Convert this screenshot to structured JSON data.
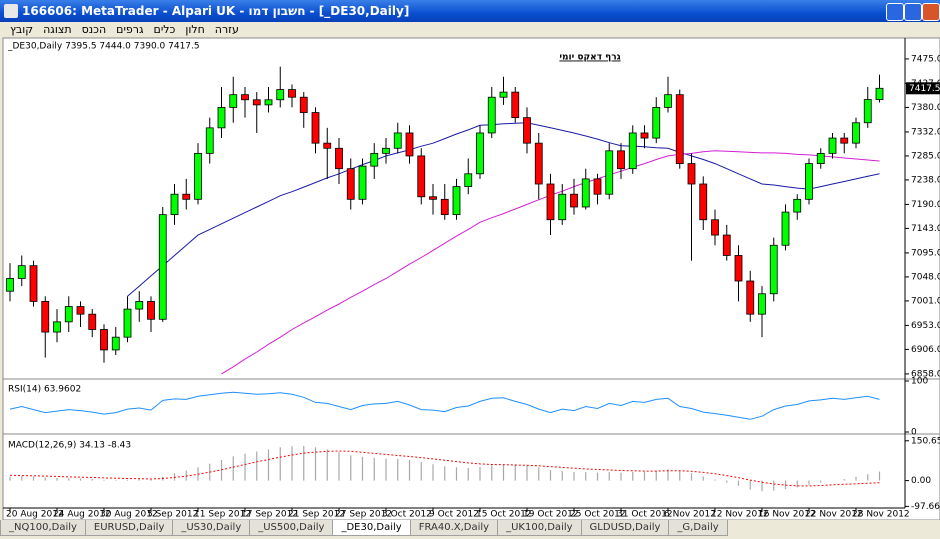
{
  "window": {
    "title": "166606: MetaTrader - Alpari UK - חשבון דמו - [_DE30,Daily]",
    "menu": [
      "קובץ",
      "תצוגה",
      "הכנס",
      "גרפים",
      "כלים",
      "חלון",
      "עזרה"
    ],
    "tabs": [
      {
        "label": "_NQ100,Daily",
        "active": false
      },
      {
        "label": "EURUSD,Daily",
        "active": false
      },
      {
        "label": "_US30,Daily",
        "active": false
      },
      {
        "label": "_US500,Daily",
        "active": false
      },
      {
        "label": "_DE30,Daily",
        "active": true
      },
      {
        "label": "FRA40.X,Daily",
        "active": false
      },
      {
        "label": "_UK100,Daily",
        "active": false
      },
      {
        "label": "GLDUSD,Daily",
        "active": false
      },
      {
        "label": "_G,Daily",
        "active": false
      }
    ]
  },
  "chart_data": [
    {
      "type": "candlestick",
      "title": "גרף דאקס יומי",
      "subtitle": "_DE30,Daily  7395.5 7444.0 7390.0 7417.5",
      "categories": [
        "20 Aug 2012",
        null,
        null,
        null,
        "24 Aug 2012",
        null,
        null,
        null,
        "30 Aug 2012",
        null,
        null,
        null,
        "5 Sep 2012",
        null,
        null,
        null,
        "11 Sep 2012",
        null,
        null,
        null,
        "17 Sep 2012",
        null,
        null,
        null,
        "21 Sep 2012",
        null,
        null,
        null,
        "27 Sep 2012",
        null,
        null,
        null,
        "3 Oct 2012",
        null,
        null,
        null,
        "9 Oct 2012",
        null,
        null,
        null,
        "15 Oct 2012",
        null,
        null,
        null,
        "19 Oct 2012",
        null,
        null,
        null,
        "25 Oct 2012",
        null,
        null,
        null,
        "31 Oct 2012",
        null,
        null,
        null,
        "6 Nov 2012",
        null,
        null,
        null,
        "12 Nov 2012",
        null,
        null,
        null,
        "16 Nov 2012",
        null,
        null,
        null,
        "22 Nov 2012",
        null,
        null,
        null,
        "28 Nov 2012",
        null,
        null
      ],
      "open": [
        7020,
        7045,
        7070,
        7000,
        6940,
        6960,
        6990,
        6975,
        6945,
        6905,
        6930,
        6985,
        7000,
        6965,
        7170,
        7210,
        7200,
        7290,
        7340,
        7380,
        7405,
        7395,
        7385,
        7395,
        7415,
        7400,
        7370,
        7310,
        7300,
        7260,
        7200,
        7265,
        7290,
        7300,
        7330,
        7285,
        7205,
        7200,
        7170,
        7225,
        7250,
        7330,
        7400,
        7410,
        7360,
        7310,
        7230,
        7160,
        7210,
        7185,
        7240,
        7210,
        7295,
        7260,
        7330,
        7320,
        7380,
        7405,
        7270,
        7230,
        7160,
        7130,
        7090,
        7040,
        6975,
        7015,
        7110,
        7175,
        7200,
        7270,
        7290,
        7320,
        7310,
        7350,
        7395.5
      ],
      "high": [
        7075,
        7090,
        7080,
        7010,
        6985,
        7010,
        7000,
        6985,
        6955,
        6950,
        7010,
        7020,
        7010,
        7185,
        7230,
        7240,
        7310,
        7360,
        7420,
        7440,
        7420,
        7410,
        7420,
        7460,
        7425,
        7410,
        7380,
        7340,
        7320,
        7280,
        7280,
        7310,
        7320,
        7350,
        7345,
        7300,
        7230,
        7230,
        7240,
        7280,
        7345,
        7420,
        7440,
        7420,
        7380,
        7330,
        7250,
        7230,
        7240,
        7260,
        7250,
        7310,
        7310,
        7345,
        7345,
        7400,
        7440,
        7415,
        7290,
        7245,
        7180,
        7150,
        7110,
        7060,
        7030,
        7125,
        7190,
        7210,
        7280,
        7300,
        7330,
        7330,
        7360,
        7420,
        7444
      ],
      "low": [
        7000,
        7030,
        6990,
        6890,
        6920,
        6940,
        6950,
        6930,
        6880,
        6895,
        6920,
        6960,
        6940,
        6960,
        7150,
        7180,
        7190,
        7270,
        7320,
        7350,
        7360,
        7330,
        7370,
        7380,
        7380,
        7340,
        7290,
        7240,
        7230,
        7180,
        7190,
        7240,
        7270,
        7290,
        7270,
        7190,
        7170,
        7160,
        7160,
        7210,
        7240,
        7320,
        7385,
        7350,
        7290,
        7200,
        7130,
        7150,
        7170,
        7180,
        7190,
        7200,
        7240,
        7250,
        7300,
        7310,
        7370,
        7260,
        7080,
        7140,
        7110,
        7080,
        7000,
        6960,
        6930,
        7000,
        7100,
        7160,
        7190,
        7260,
        7280,
        7290,
        7300,
        7340,
        7390
      ],
      "close": [
        7045,
        7070,
        7000,
        6940,
        6960,
        6990,
        6975,
        6945,
        6905,
        6930,
        6985,
        7000,
        6965,
        7170,
        7210,
        7200,
        7290,
        7340,
        7380,
        7405,
        7395,
        7385,
        7395,
        7415,
        7400,
        7370,
        7310,
        7300,
        7260,
        7200,
        7265,
        7290,
        7300,
        7330,
        7285,
        7205,
        7200,
        7170,
        7225,
        7250,
        7330,
        7400,
        7410,
        7360,
        7310,
        7230,
        7160,
        7210,
        7185,
        7240,
        7210,
        7295,
        7260,
        7330,
        7320,
        7380,
        7405,
        7270,
        7230,
        7160,
        7130,
        7090,
        7040,
        6975,
        7015,
        7110,
        7175,
        7200,
        7270,
        7290,
        7320,
        7310,
        7350,
        7395.5,
        7417.5
      ],
      "up_color": "#00ff00",
      "down_color": "#ff0000",
      "overlays": [
        {
          "color": "#1a1aa6",
          "values": [
            null,
            null,
            null,
            null,
            null,
            null,
            null,
            null,
            null,
            null,
            7010,
            7030,
            7050,
            7070,
            7090,
            7110,
            7130,
            7141,
            7152,
            7163,
            7174,
            7185,
            7196,
            7207,
            7215,
            7224,
            7233,
            7242,
            7250,
            7259,
            7268,
            7276,
            7285,
            7291,
            7297,
            7304,
            7310,
            7319,
            7328,
            7336,
            7345,
            7346,
            7348,
            7349,
            7350,
            7345,
            7340,
            7335,
            7330,
            7324,
            7318,
            7311,
            7305,
            7304,
            7303,
            7301,
            7300,
            7292,
            7285,
            7278,
            7270,
            7260,
            7250,
            7240,
            7230,
            7228,
            7225,
            7222,
            7220,
            7225,
            7230,
            7235,
            7240,
            7245,
            7250
          ]
        },
        {
          "color": "#d41fd4",
          "values": [
            null,
            null,
            null,
            null,
            null,
            null,
            null,
            null,
            null,
            null,
            null,
            null,
            null,
            null,
            null,
            null,
            null,
            null,
            6858,
            6872,
            6887,
            6901,
            6916,
            6930,
            6945,
            6958,
            6970,
            6983,
            6995,
            7008,
            7020,
            7033,
            7045,
            7059,
            7073,
            7086,
            7100,
            7114,
            7128,
            7141,
            7155,
            7164,
            7172,
            7181,
            7190,
            7199,
            7208,
            7216,
            7225,
            7233,
            7240,
            7248,
            7255,
            7263,
            7270,
            7278,
            7285,
            7288,
            7290,
            7293,
            7295,
            7294,
            7293,
            7292,
            7291,
            7291,
            7290,
            7288,
            7287,
            7285,
            7283,
            7281,
            7279,
            7277,
            7275
          ]
        }
      ],
      "ylim": [
        6850,
        7516
      ],
      "yticks": [
        {
          "value": 6858,
          "label": "6858.0"
        },
        {
          "value": 6906,
          "label": "6906.0"
        },
        {
          "value": 6953,
          "label": "6953.0"
        },
        {
          "value": 7001,
          "label": "7001.0"
        },
        {
          "value": 7048,
          "label": "7048.0"
        },
        {
          "value": 7095,
          "label": "7095.0"
        },
        {
          "value": 7143,
          "label": "7143.0"
        },
        {
          "value": 7190,
          "label": "7190.0"
        },
        {
          "value": 7238,
          "label": "7238.0"
        },
        {
          "value": 7285,
          "label": "7285.0"
        },
        {
          "value": 7332,
          "label": "7332.0"
        },
        {
          "value": 7380,
          "label": "7380.0"
        },
        {
          "value": 7427,
          "label": "7427.0"
        },
        {
          "value": 7475,
          "label": "7475.0"
        }
      ]
    },
    {
      "type": "line",
      "title": "RSI(14) 63.9602",
      "series": [
        {
          "color": "#1e90ff",
          "values": [
            45,
            50,
            44,
            38,
            41,
            44,
            42,
            39,
            35,
            38,
            45,
            47,
            43,
            62,
            65,
            64,
            70,
            73,
            76,
            78,
            76,
            74,
            75,
            77,
            74,
            68,
            58,
            56,
            50,
            44,
            52,
            55,
            56,
            60,
            53,
            44,
            43,
            40,
            48,
            51,
            60,
            66,
            67,
            60,
            54,
            45,
            38,
            45,
            42,
            50,
            46,
            56,
            52,
            60,
            58,
            64,
            66,
            50,
            46,
            39,
            36,
            33,
            29,
            25,
            31,
            44,
            51,
            54,
            61,
            63,
            66,
            64,
            67,
            70,
            63.96
          ]
        }
      ],
      "ylim": [
        0,
        100
      ],
      "yticks": [
        100,
        0
      ]
    },
    {
      "type": "macd",
      "title": "MACD(12,26,9) 34.13 -8.43",
      "series": [
        {
          "kind": "bar",
          "color": "#a8a8a8",
          "values": [
            15,
            17,
            16,
            12,
            10,
            9,
            8,
            6,
            3,
            2,
            3,
            4,
            3,
            15,
            28,
            38,
            50,
            64,
            78,
            92,
            102,
            110,
            118,
            126,
            130,
            131,
            126,
            118,
            108,
            96,
            90,
            86,
            83,
            82,
            78,
            70,
            62,
            54,
            50,
            48,
            52,
            58,
            62,
            62,
            58,
            50,
            40,
            36,
            32,
            32,
            30,
            32,
            30,
            33,
            34,
            38,
            42,
            36,
            28,
            16,
            4,
            -8,
            -20,
            -34,
            -40,
            -38,
            -32,
            -26,
            -16,
            -8,
            0,
            6,
            14,
            24,
            34.13
          ]
        },
        {
          "kind": "line",
          "color": "#ff0000",
          "values": [
            20,
            19,
            18,
            17,
            16,
            14,
            13,
            12,
            10,
            9,
            8,
            7,
            6,
            8,
            12,
            17,
            24,
            32,
            41,
            51,
            61,
            71,
            80,
            89,
            97,
            104,
            108,
            111,
            112,
            111,
            107,
            103,
            99,
            95,
            91,
            87,
            82,
            77,
            72,
            67,
            63,
            61,
            60,
            59,
            58,
            56,
            53,
            50,
            47,
            44,
            42,
            40,
            38,
            37,
            36,
            36,
            37,
            37,
            35,
            31,
            26,
            19,
            11,
            2,
            -6,
            -13,
            -17,
            -20,
            -20,
            -19,
            -16,
            -14,
            -12,
            -10,
            -8.43
          ]
        }
      ],
      "ylim": [
        -100,
        165
      ],
      "yticks": [
        150.65,
        {
          "value": 0,
          "label": "0.00"
        },
        -97.66
      ]
    }
  ]
}
